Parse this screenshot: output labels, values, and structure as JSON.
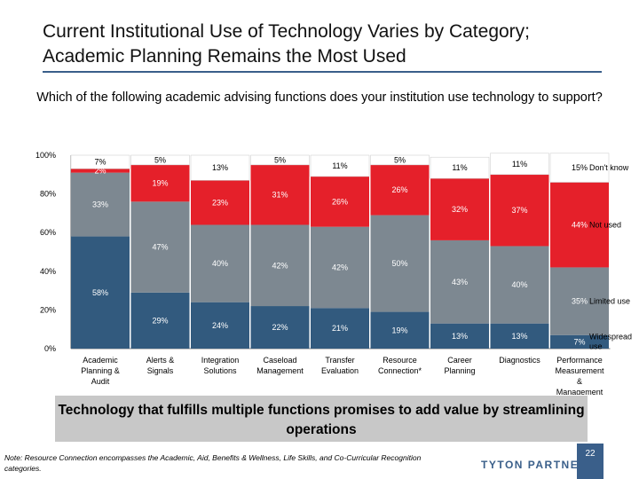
{
  "title": "Current Institutional Use of Technology Varies by Category; Academic Planning Remains the Most Used",
  "question": "Which of the following academic advising functions does your institution use technology to support?",
  "banner": "Technology that fulfills multiple functions promises to add value by streamlining operations",
  "note": "Note: Resource Connection encompasses the Academic, Aid, Benefits & Wellness, Life Skills, and Co-Curricular Recognition categories.",
  "logo": "TYTON PARTNERS",
  "page_number": "22",
  "colors": {
    "widespread": "#325a7e",
    "limited": "#7d8891",
    "not_used": "#e5202a",
    "dont_know": "#ffffff",
    "rule": "#3a5f8a"
  },
  "chart_data": {
    "type": "bar",
    "stacked": true,
    "ylim": [
      0,
      100
    ],
    "yticks": [
      "0%",
      "20%",
      "40%",
      "60%",
      "80%",
      "100%"
    ],
    "grid": false,
    "legend": "right",
    "categories": [
      "Academic Planning & Audit",
      "Alerts & Signals",
      "Integration Solutions",
      "Caseload Management",
      "Transfer Evaluation",
      "Resource Connection*",
      "Career Planning",
      "Diagnostics",
      "Performance Measurement & Management"
    ],
    "series": [
      {
        "name": "Widespread use",
        "values": [
          58,
          29,
          24,
          22,
          21,
          19,
          13,
          13,
          7
        ],
        "labels": [
          "58%",
          "29%",
          "24%",
          "22%",
          "21%",
          "19%",
          "13%",
          "13%",
          "7%"
        ]
      },
      {
        "name": "Limited use",
        "values": [
          33,
          47,
          40,
          42,
          42,
          50,
          43,
          40,
          35
        ],
        "labels": [
          "33%",
          "47%",
          "40%",
          "42%",
          "42%",
          "50%",
          "43%",
          "40%",
          "35%"
        ]
      },
      {
        "name": "Not used",
        "values": [
          2,
          19,
          23,
          31,
          26,
          26,
          32,
          37,
          44
        ],
        "labels": [
          "2%",
          "19%",
          "23%",
          "31%",
          "26%",
          "26%",
          "32%",
          "37%",
          "44%"
        ]
      },
      {
        "name": "Don't know",
        "values": [
          7,
          5,
          13,
          5,
          11,
          5,
          11,
          11,
          15
        ],
        "labels": [
          "7%",
          "5%",
          "13%",
          "5%",
          "11%",
          "5%",
          "11%",
          "11%",
          "15%"
        ]
      }
    ]
  }
}
